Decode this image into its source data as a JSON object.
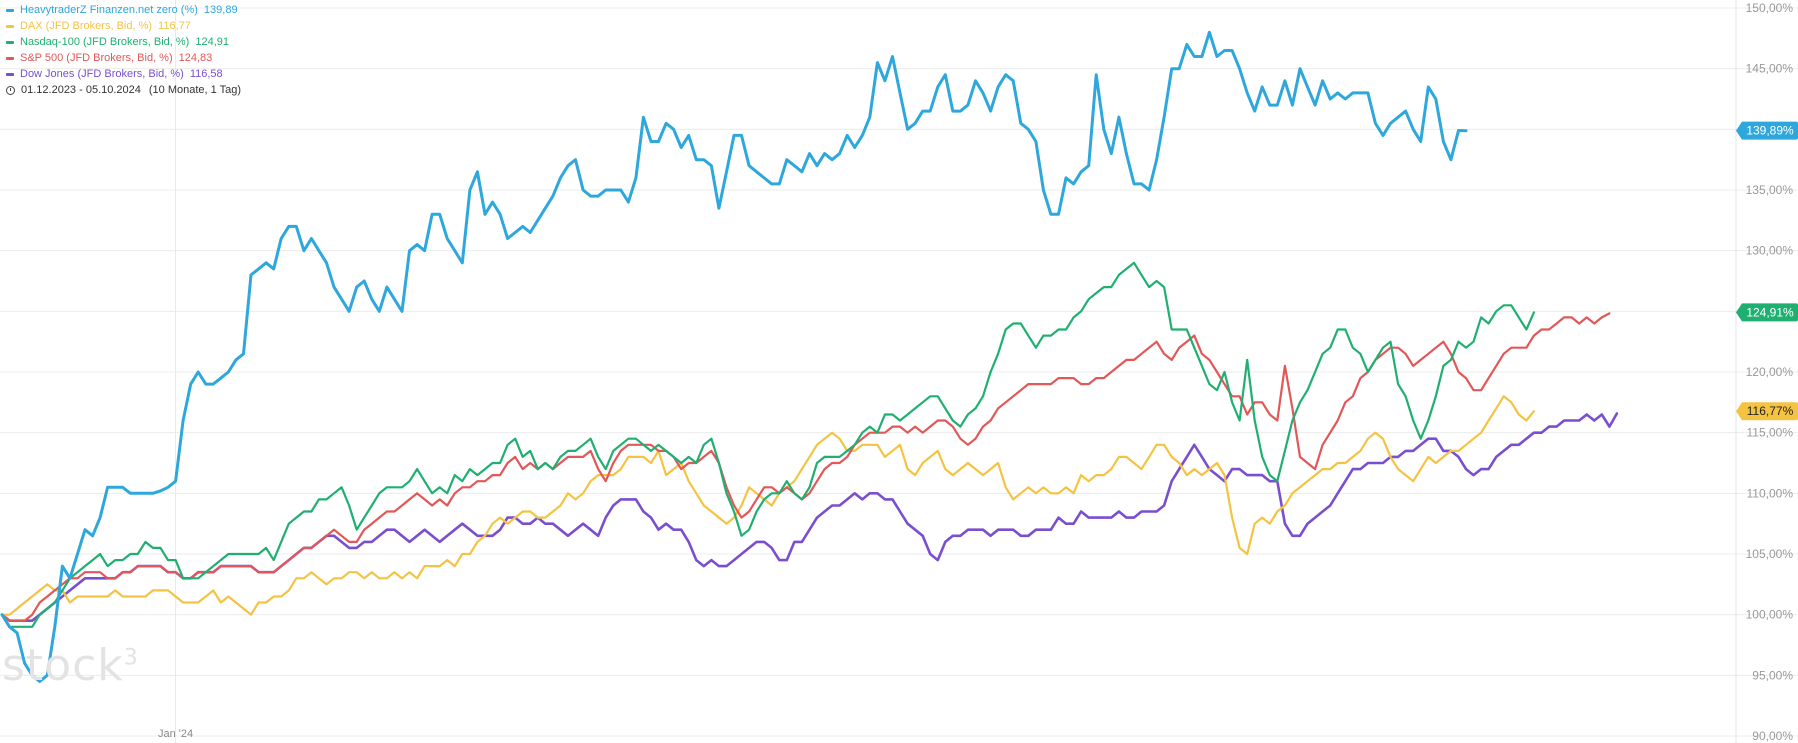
{
  "legend": {
    "series": [
      {
        "name": "HeavytraderZ Finanzen.net zero (%)",
        "value": "139,89",
        "color": "#2ea7dd"
      },
      {
        "name": "DAX (JFD Brokers, Bid, %)",
        "value": "116,77",
        "color": "#f5c342"
      },
      {
        "name": "Nasdaq-100 (JFD Brokers, Bid, %)",
        "value": "124,91",
        "color": "#1fb071"
      },
      {
        "name": "S&P 500 (JFD Brokers, Bid, %)",
        "value": "124,83",
        "color": "#e25757"
      },
      {
        "name": "Dow Jones (JFD Brokers, Bid, %)",
        "value": "116,58",
        "color": "#7a4fcf"
      }
    ],
    "date_range": "01.12.2023 - 05.10.2024",
    "span": "(10 Monate, 1 Tag)"
  },
  "watermark": {
    "brand": "stock",
    "sup": "3"
  },
  "chart_data": {
    "type": "line",
    "x_tick_labels": [
      {
        "label": "Jan '24",
        "index": 23
      }
    ],
    "ylim": [
      90,
      150
    ],
    "y_ticks": [
      "150,00%",
      "145,00%",
      "140,00%",
      "135,00%",
      "130,00%",
      "125,00%",
      "120,00%",
      "115,00%",
      "110,00%",
      "105,00%",
      "100,00%",
      "95,00%",
      "90,00%"
    ],
    "y_tick_values": [
      150,
      145,
      140,
      135,
      130,
      125,
      120,
      115,
      110,
      105,
      100,
      95,
      90
    ],
    "grid": true,
    "axis_position": "right",
    "last_value_tags": [
      {
        "label": "139,89%",
        "value": 139.89,
        "color": "#2ea7dd",
        "text_color": "#ffffff"
      },
      {
        "label": "124,91%",
        "value": 124.91,
        "color": "#1fb071",
        "text_color": "#ffffff"
      },
      {
        "label": "116,77%",
        "value": 116.77,
        "color": "#f5c342",
        "text_color": "#222222"
      }
    ],
    "series": [
      {
        "name": "HeavytraderZ Finanzen.net zero (%)",
        "color": "#2ea7dd",
        "width": 3,
        "values": [
          100,
          99,
          98.5,
          96,
          95,
          94.5,
          95,
          99,
          104,
          103,
          105,
          107,
          106.5,
          108,
          110.5,
          110.5,
          110.5,
          110,
          110,
          110,
          110,
          110.2,
          110.5,
          111,
          116,
          119,
          120,
          119,
          119,
          119.5,
          120,
          121,
          121.5,
          128,
          128.5,
          129,
          128.5,
          131,
          132,
          132,
          130,
          131,
          130,
          129,
          127,
          126,
          125,
          127,
          127.5,
          126,
          125,
          127,
          126,
          125,
          130,
          130.5,
          130,
          133,
          133,
          131,
          130,
          129,
          135,
          136.5,
          133,
          134,
          133,
          131,
          131.5,
          132,
          131.5,
          132.5,
          133.5,
          134.5,
          136,
          137,
          137.5,
          135,
          134.5,
          134.5,
          135,
          135,
          135,
          134,
          136,
          141,
          139,
          139,
          140.5,
          140,
          138.5,
          139.5,
          137.5,
          137.5,
          137,
          133.5,
          136.5,
          139.5,
          139.5,
          137,
          136.5,
          136,
          135.5,
          135.5,
          137.5,
          137,
          136.5,
          138,
          137,
          138,
          137.5,
          138,
          139.5,
          138.5,
          139.5,
          141,
          145.5,
          144,
          146,
          143,
          140,
          140.5,
          141.5,
          141.5,
          143.5,
          144.5,
          141.5,
          141.5,
          142,
          144,
          143,
          141.5,
          143.5,
          144.5,
          144,
          140.5,
          140,
          139,
          135,
          133,
          133,
          136,
          135.5,
          136.5,
          137,
          144.5,
          140,
          138,
          141,
          138,
          135.5,
          135.5,
          135,
          137.5,
          141,
          145,
          145,
          147,
          146,
          146,
          148,
          146,
          146.5,
          146.5,
          145,
          143,
          141.5,
          143.5,
          142,
          142,
          144,
          142,
          145,
          143.5,
          142,
          144,
          142.5,
          143,
          142.5,
          143,
          143,
          143,
          140.5,
          139.5,
          140.5,
          141,
          141.5,
          140,
          139,
          143.5,
          142.5,
          139,
          137.5,
          139.9,
          139.89
        ]
      },
      {
        "name": "DAX (JFD Brokers, Bid, %)",
        "color": "#f5c342",
        "width": 2.2,
        "values": [
          100,
          100,
          100.5,
          101,
          101.5,
          102,
          102.5,
          102,
          102,
          101,
          101.5,
          101.5,
          101.5,
          101.5,
          101.5,
          102,
          101.5,
          101.5,
          101.5,
          101.5,
          102,
          102,
          102,
          101.5,
          101,
          101,
          101,
          101.5,
          102,
          101,
          101.5,
          101,
          100.5,
          100,
          101,
          101,
          101.5,
          101.5,
          102,
          103,
          103,
          103.5,
          103,
          102.5,
          103,
          103,
          103.5,
          103.5,
          103,
          103.5,
          103,
          103,
          103.5,
          103,
          103.5,
          103,
          104,
          104,
          104,
          104.5,
          104,
          105,
          105,
          106,
          106.5,
          107.5,
          108,
          107.5,
          108,
          108.5,
          108.5,
          108,
          108,
          108.5,
          109,
          110,
          109.5,
          110,
          111,
          111.5,
          111.5,
          111.5,
          112,
          113,
          113,
          113,
          112.5,
          113.5,
          111.5,
          112,
          112.5,
          111,
          110,
          109,
          108.5,
          108,
          107.5,
          108,
          109,
          110.5,
          110,
          109.5,
          109,
          110,
          110.5,
          111,
          112,
          113,
          114,
          114.5,
          115,
          114.5,
          113.5,
          113.5,
          114,
          114,
          114,
          113,
          113.5,
          114,
          112,
          111.5,
          112.5,
          113,
          113.5,
          112,
          111.5,
          112,
          112.5,
          112,
          111.5,
          112,
          112.5,
          110.5,
          109.5,
          110,
          110.5,
          110,
          110.5,
          110,
          110,
          110.5,
          110,
          111.5,
          111,
          111.5,
          111.5,
          112,
          113,
          113,
          112.5,
          112,
          113,
          114,
          114,
          113,
          112.5,
          111.5,
          112,
          111.5,
          112,
          112.5,
          111.5,
          108,
          105.5,
          105,
          107.5,
          108,
          107.5,
          108.5,
          109,
          110,
          110.5,
          111,
          111.5,
          112,
          112,
          112.5,
          112.5,
          113,
          113.5,
          114.5,
          115,
          114.5,
          113,
          112,
          111.5,
          111,
          112,
          113,
          112.5,
          113,
          113.5,
          113.5,
          114,
          114.5,
          115,
          116,
          117,
          118,
          117.5,
          116.5,
          116,
          116.77
        ]
      },
      {
        "name": "Nasdaq-100 (JFD Brokers, Bid, %)",
        "color": "#1fb071",
        "width": 2.2,
        "values": [
          100,
          99,
          99,
          99,
          99,
          100,
          100.5,
          101,
          102,
          103,
          103.5,
          104,
          104.5,
          105,
          104,
          104.5,
          104.5,
          105,
          105,
          106,
          105.5,
          105.5,
          104.5,
          104.5,
          103,
          103,
          103,
          103.5,
          104,
          104.5,
          105,
          105,
          105,
          105,
          105,
          105.5,
          104.5,
          106,
          107.5,
          108,
          108.5,
          108.5,
          109.5,
          109.5,
          110,
          110.5,
          109,
          107,
          108,
          109,
          110,
          110.5,
          110.5,
          110.5,
          111,
          112,
          111,
          110,
          110.5,
          110,
          111.5,
          111,
          112,
          111.5,
          112,
          112.5,
          112.5,
          114,
          114.5,
          113,
          113.5,
          112,
          112.5,
          112,
          113,
          113.5,
          113.5,
          114,
          114.5,
          113,
          112,
          113.5,
          114,
          114.5,
          114.5,
          114,
          113.5,
          114,
          113.5,
          113,
          112.5,
          113,
          112.5,
          114,
          114.5,
          112.5,
          110,
          108.5,
          106.5,
          107,
          108.5,
          109.5,
          110,
          110,
          111,
          110,
          109.5,
          110.5,
          112.5,
          113,
          113,
          113,
          113.5,
          114,
          115,
          115.5,
          115,
          116.5,
          116.5,
          116,
          116.5,
          117,
          117.5,
          118,
          118,
          117,
          116,
          115.5,
          116.5,
          117,
          118,
          120,
          121.5,
          123.5,
          124,
          124,
          123,
          122,
          123,
          123,
          123.5,
          123.5,
          124.5,
          125,
          126,
          126.5,
          127,
          127,
          128,
          128.5,
          129,
          128,
          127,
          127.5,
          127,
          123.5,
          123.5,
          123.5,
          122,
          120.5,
          119,
          118.5,
          120,
          117.5,
          116,
          121,
          116,
          113,
          111.5,
          111,
          113.5,
          116,
          117.5,
          118.5,
          120,
          121.5,
          122,
          123.5,
          123.5,
          122,
          121.5,
          120,
          121,
          122,
          122.5,
          119,
          118,
          116,
          114.5,
          116,
          118,
          120.5,
          121,
          122.5,
          122,
          122.5,
          124.5,
          124,
          125,
          125.5,
          125.5,
          124.5,
          123.5,
          124.91
        ]
      },
      {
        "name": "S&P 500 (JFD Brokers, Bid, %)",
        "color": "#e25757",
        "width": 2.2,
        "values": [
          100,
          99.5,
          99.5,
          99.5,
          100,
          101,
          101.5,
          102,
          102.5,
          103,
          103,
          103.5,
          103.5,
          103.5,
          103,
          103,
          103.5,
          103.5,
          104,
          104,
          104,
          104,
          103.5,
          103.5,
          103,
          103,
          103.5,
          103.5,
          103.5,
          104,
          104,
          104,
          104,
          104,
          103.5,
          103.5,
          103.5,
          104,
          104.5,
          105,
          105.5,
          105.5,
          106,
          106.5,
          107,
          106.5,
          106,
          106,
          107,
          107.5,
          108,
          108.5,
          108.5,
          109,
          109.5,
          110,
          109.5,
          109,
          109.5,
          109,
          110,
          110.5,
          110.5,
          111,
          111,
          111.5,
          111.5,
          112.5,
          113,
          112,
          112.5,
          112,
          112.5,
          112,
          112.5,
          113,
          113,
          113,
          113.5,
          112,
          111,
          112.5,
          113.5,
          114,
          114,
          114,
          114,
          113.5,
          113.5,
          113,
          112,
          112.5,
          112.5,
          113,
          113.5,
          112.5,
          110.5,
          109,
          108,
          108.5,
          109.5,
          110.5,
          110.5,
          110,
          110.5,
          110,
          109.5,
          110,
          111,
          112,
          112.5,
          112.5,
          113,
          114,
          114.5,
          115,
          115,
          115,
          115.5,
          115.5,
          115,
          115.5,
          115,
          115.5,
          116,
          116,
          115.5,
          114.5,
          114,
          114.5,
          115.5,
          116,
          117,
          117.5,
          118,
          118.5,
          119,
          119,
          119,
          119,
          119.5,
          119.5,
          119.5,
          119,
          119,
          119.5,
          119.5,
          120,
          120.5,
          121,
          121,
          121.5,
          122,
          122.5,
          121.5,
          121,
          122,
          122.5,
          123,
          121.5,
          121,
          120,
          119,
          118,
          118,
          116.5,
          117.5,
          117.5,
          116.5,
          116,
          120.5,
          117,
          113,
          112.5,
          112,
          114,
          115,
          116,
          117.5,
          118,
          119.5,
          120,
          121,
          121.5,
          122,
          122,
          121.5,
          120.5,
          121,
          121.5,
          122,
          122.5,
          121.5,
          120,
          119.5,
          118.5,
          118.5,
          119.5,
          120.5,
          121.5,
          122,
          122,
          122,
          123,
          123.5,
          123.5,
          124,
          124.5,
          124.5,
          124,
          124.5,
          124,
          124.5,
          124.83
        ]
      },
      {
        "name": "Dow Jones (JFD Brokers, Bid, %)",
        "color": "#7a4fcf",
        "width": 2.6,
        "values": [
          100,
          99.5,
          99.5,
          99.5,
          99.5,
          100,
          100.5,
          101,
          101.5,
          102,
          102.5,
          103,
          103,
          103,
          103,
          103,
          103.5,
          103.5,
          104,
          104,
          104,
          104,
          103.5,
          103.5,
          103,
          103,
          103.5,
          103.5,
          103.5,
          104,
          104,
          104,
          104,
          104,
          103.5,
          103.5,
          103.5,
          104,
          104.5,
          105,
          105.5,
          105.5,
          106,
          106.5,
          106.5,
          106,
          105.5,
          105.5,
          106,
          106,
          106.5,
          107,
          107,
          106.5,
          106,
          106.5,
          107,
          106.5,
          106,
          106.5,
          107,
          107.5,
          107,
          106.5,
          106.5,
          106.5,
          107,
          108,
          108,
          107.5,
          107.5,
          108,
          107.5,
          107.5,
          107,
          106.5,
          107,
          107.5,
          107,
          106.5,
          108,
          109,
          109.5,
          109.5,
          109.5,
          108.5,
          108,
          107,
          107.5,
          107,
          107,
          106,
          104.5,
          104,
          104.5,
          104,
          104,
          104.5,
          105,
          105.5,
          106,
          106,
          105.5,
          104.5,
          104.5,
          106,
          106,
          107,
          108,
          108.5,
          109,
          109,
          109.5,
          110,
          109.5,
          110,
          110,
          109.5,
          109.5,
          108.5,
          107.5,
          107,
          106.5,
          105,
          104.5,
          106,
          106.5,
          106.5,
          107,
          107,
          107,
          106.5,
          107,
          107,
          107,
          106.5,
          106.5,
          107,
          107,
          107,
          108,
          107.5,
          107.5,
          108.5,
          108,
          108,
          108,
          108,
          108.5,
          108,
          108,
          108.5,
          108.5,
          108.5,
          109,
          111,
          112,
          113,
          114,
          113,
          112,
          111.5,
          111,
          112,
          112,
          111.5,
          111.5,
          111.5,
          111,
          111,
          107.5,
          106.5,
          106.5,
          107.5,
          108,
          108.5,
          109,
          110,
          111,
          112,
          112,
          112.5,
          112.5,
          112.5,
          113,
          113,
          113.5,
          113.5,
          114,
          114.5,
          114.5,
          113.5,
          113.5,
          113,
          112,
          111.5,
          112,
          112,
          113,
          113.5,
          114,
          114,
          114.5,
          115,
          115,
          115.5,
          115.5,
          116,
          116,
          116,
          116.5,
          116,
          116.5,
          115.5,
          116.58
        ]
      }
    ]
  }
}
